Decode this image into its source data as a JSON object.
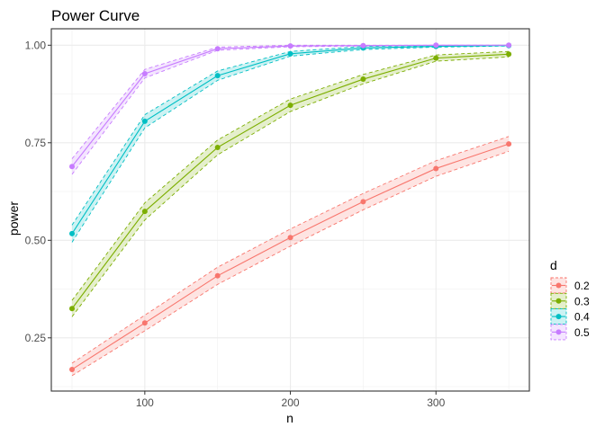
{
  "chart_data": {
    "type": "line",
    "title": "Power Curve",
    "xlabel": "n",
    "ylabel": "power",
    "xlim": [
      35,
      365
    ],
    "ylim": [
      0.113,
      1.042
    ],
    "x_ticks": [
      100,
      200,
      300
    ],
    "y_ticks": [
      0.25,
      0.5,
      0.75,
      1.0
    ],
    "y_tick_labels": [
      "0.25",
      "0.50",
      "0.75",
      "1.00"
    ],
    "grid": true,
    "legend": {
      "title": "d",
      "placement": "right"
    },
    "x": [
      50,
      100,
      150,
      200,
      250,
      300,
      350
    ],
    "series": [
      {
        "name": "0.2",
        "color": "#F8766D",
        "values": [
          0.169,
          0.288,
          0.409,
          0.507,
          0.599,
          0.684,
          0.747
        ],
        "ci": [
          0.016,
          0.02,
          0.022,
          0.022,
          0.021,
          0.02,
          0.019
        ]
      },
      {
        "name": "0.3",
        "color": "#7CAE00",
        "values": [
          0.325,
          0.574,
          0.738,
          0.846,
          0.913,
          0.967,
          0.977
        ],
        "ci": [
          0.021,
          0.022,
          0.019,
          0.016,
          0.012,
          0.008,
          0.007
        ]
      },
      {
        "name": "0.4",
        "color": "#00BFC4",
        "values": [
          0.517,
          0.805,
          0.922,
          0.978,
          0.993,
          0.997,
          0.999
        ],
        "ci": [
          0.022,
          0.017,
          0.012,
          0.006,
          0.004,
          0.002,
          0.001
        ]
      },
      {
        "name": "0.5",
        "color": "#C77CFF",
        "values": [
          0.689,
          0.927,
          0.991,
          0.998,
          0.999,
          1.0,
          1.0
        ],
        "ci": [
          0.02,
          0.011,
          0.004,
          0.002,
          0.001,
          0.0,
          0.0
        ]
      }
    ]
  }
}
